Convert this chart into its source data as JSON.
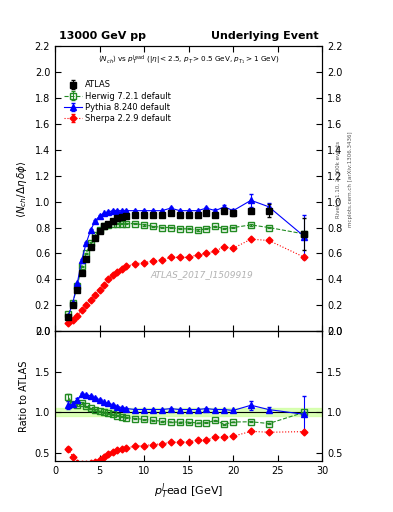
{
  "title_left": "13000 GeV pp",
  "title_right": "Underlying Event",
  "ylabel_main": "<N_{ch} / Delta eta delta>",
  "ylabel_ratio": "Ratio to ATLAS",
  "xlabel": "$p_T^l$ead [GeV]",
  "watermark": "ATLAS_2017_I1509919",
  "atlas_x": [
    1.5,
    2.0,
    2.5,
    3.0,
    3.5,
    4.0,
    4.5,
    5.0,
    5.5,
    6.0,
    6.5,
    7.0,
    7.5,
    8.0,
    9.0,
    10.0,
    11.0,
    12.0,
    13.0,
    14.0,
    15.0,
    16.0,
    17.0,
    18.0,
    19.0,
    20.0,
    22.0,
    24.0,
    28.0
  ],
  "atlas_y": [
    0.11,
    0.2,
    0.32,
    0.45,
    0.56,
    0.65,
    0.72,
    0.77,
    0.81,
    0.83,
    0.85,
    0.87,
    0.88,
    0.89,
    0.9,
    0.9,
    0.9,
    0.9,
    0.91,
    0.9,
    0.9,
    0.9,
    0.91,
    0.9,
    0.93,
    0.91,
    0.93,
    0.93,
    0.75
  ],
  "atlas_yerr": [
    0.01,
    0.01,
    0.01,
    0.01,
    0.01,
    0.01,
    0.01,
    0.01,
    0.01,
    0.01,
    0.01,
    0.01,
    0.01,
    0.01,
    0.01,
    0.01,
    0.01,
    0.01,
    0.01,
    0.01,
    0.01,
    0.01,
    0.01,
    0.01,
    0.02,
    0.02,
    0.02,
    0.05,
    0.12
  ],
  "herwig_x": [
    1.5,
    2.0,
    2.5,
    3.0,
    3.5,
    4.0,
    4.5,
    5.0,
    5.5,
    6.0,
    6.5,
    7.0,
    7.5,
    8.0,
    9.0,
    10.0,
    11.0,
    12.0,
    13.0,
    14.0,
    15.0,
    16.0,
    17.0,
    18.0,
    19.0,
    20.0,
    22.0,
    24.0,
    28.0
  ],
  "herwig_y": [
    0.13,
    0.22,
    0.35,
    0.5,
    0.6,
    0.68,
    0.74,
    0.78,
    0.81,
    0.82,
    0.83,
    0.83,
    0.83,
    0.83,
    0.83,
    0.82,
    0.81,
    0.8,
    0.8,
    0.79,
    0.79,
    0.78,
    0.79,
    0.81,
    0.79,
    0.8,
    0.82,
    0.8,
    0.75
  ],
  "herwig_yerr": [
    0.005,
    0.005,
    0.005,
    0.005,
    0.005,
    0.005,
    0.005,
    0.005,
    0.005,
    0.005,
    0.005,
    0.005,
    0.005,
    0.005,
    0.005,
    0.005,
    0.005,
    0.005,
    0.005,
    0.005,
    0.005,
    0.005,
    0.005,
    0.005,
    0.005,
    0.005,
    0.005,
    0.005,
    0.005
  ],
  "pythia_x": [
    1.5,
    2.0,
    2.5,
    3.0,
    3.5,
    4.0,
    4.5,
    5.0,
    5.5,
    6.0,
    6.5,
    7.0,
    7.5,
    8.0,
    9.0,
    10.0,
    11.0,
    12.0,
    13.0,
    14.0,
    15.0,
    16.0,
    17.0,
    18.0,
    19.0,
    20.0,
    22.0,
    24.0,
    28.0
  ],
  "pythia_y": [
    0.12,
    0.22,
    0.37,
    0.55,
    0.68,
    0.78,
    0.85,
    0.89,
    0.91,
    0.92,
    0.93,
    0.93,
    0.93,
    0.93,
    0.93,
    0.93,
    0.93,
    0.93,
    0.95,
    0.93,
    0.93,
    0.93,
    0.95,
    0.93,
    0.96,
    0.93,
    1.01,
    0.96,
    0.73
  ],
  "pythia_yerr": [
    0.005,
    0.005,
    0.005,
    0.005,
    0.005,
    0.005,
    0.005,
    0.005,
    0.005,
    0.005,
    0.005,
    0.005,
    0.005,
    0.005,
    0.005,
    0.005,
    0.005,
    0.005,
    0.005,
    0.005,
    0.005,
    0.005,
    0.005,
    0.01,
    0.01,
    0.01,
    0.05,
    0.03,
    0.17
  ],
  "sherpa_x": [
    1.5,
    2.0,
    2.5,
    3.0,
    3.5,
    4.0,
    4.5,
    5.0,
    5.5,
    6.0,
    6.5,
    7.0,
    7.5,
    8.0,
    9.0,
    10.0,
    11.0,
    12.0,
    13.0,
    14.0,
    15.0,
    16.0,
    17.0,
    18.0,
    19.0,
    20.0,
    22.0,
    24.0,
    28.0
  ],
  "sherpa_y": [
    0.06,
    0.09,
    0.12,
    0.16,
    0.2,
    0.24,
    0.28,
    0.32,
    0.36,
    0.4,
    0.43,
    0.46,
    0.48,
    0.5,
    0.52,
    0.53,
    0.54,
    0.55,
    0.57,
    0.57,
    0.57,
    0.59,
    0.6,
    0.62,
    0.65,
    0.64,
    0.71,
    0.7,
    0.57
  ],
  "sherpa_yerr": [
    0.003,
    0.003,
    0.003,
    0.003,
    0.003,
    0.003,
    0.003,
    0.003,
    0.003,
    0.003,
    0.003,
    0.003,
    0.003,
    0.003,
    0.003,
    0.003,
    0.003,
    0.003,
    0.003,
    0.003,
    0.003,
    0.003,
    0.003,
    0.003,
    0.003,
    0.003,
    0.003,
    0.003,
    0.003
  ],
  "atlas_color": "black",
  "herwig_color": "#228B22",
  "pythia_color": "blue",
  "sherpa_color": "red",
  "xlim": [
    0,
    30
  ],
  "ylim_main": [
    0,
    2.2
  ],
  "ylim_ratio": [
    0.4,
    2.0
  ],
  "band_color": "#ccff99",
  "band_alpha": 0.7,
  "band_y1": 0.95,
  "band_y2": 1.05,
  "yticks_main": [
    0,
    0.2,
    0.4,
    0.6,
    0.8,
    1.0,
    1.2,
    1.4,
    1.6,
    1.8,
    2.0,
    2.2
  ],
  "yticks_ratio": [
    0.5,
    1.0,
    1.5,
    2.0
  ],
  "xticks": [
    0,
    5,
    10,
    15,
    20,
    25,
    30
  ]
}
